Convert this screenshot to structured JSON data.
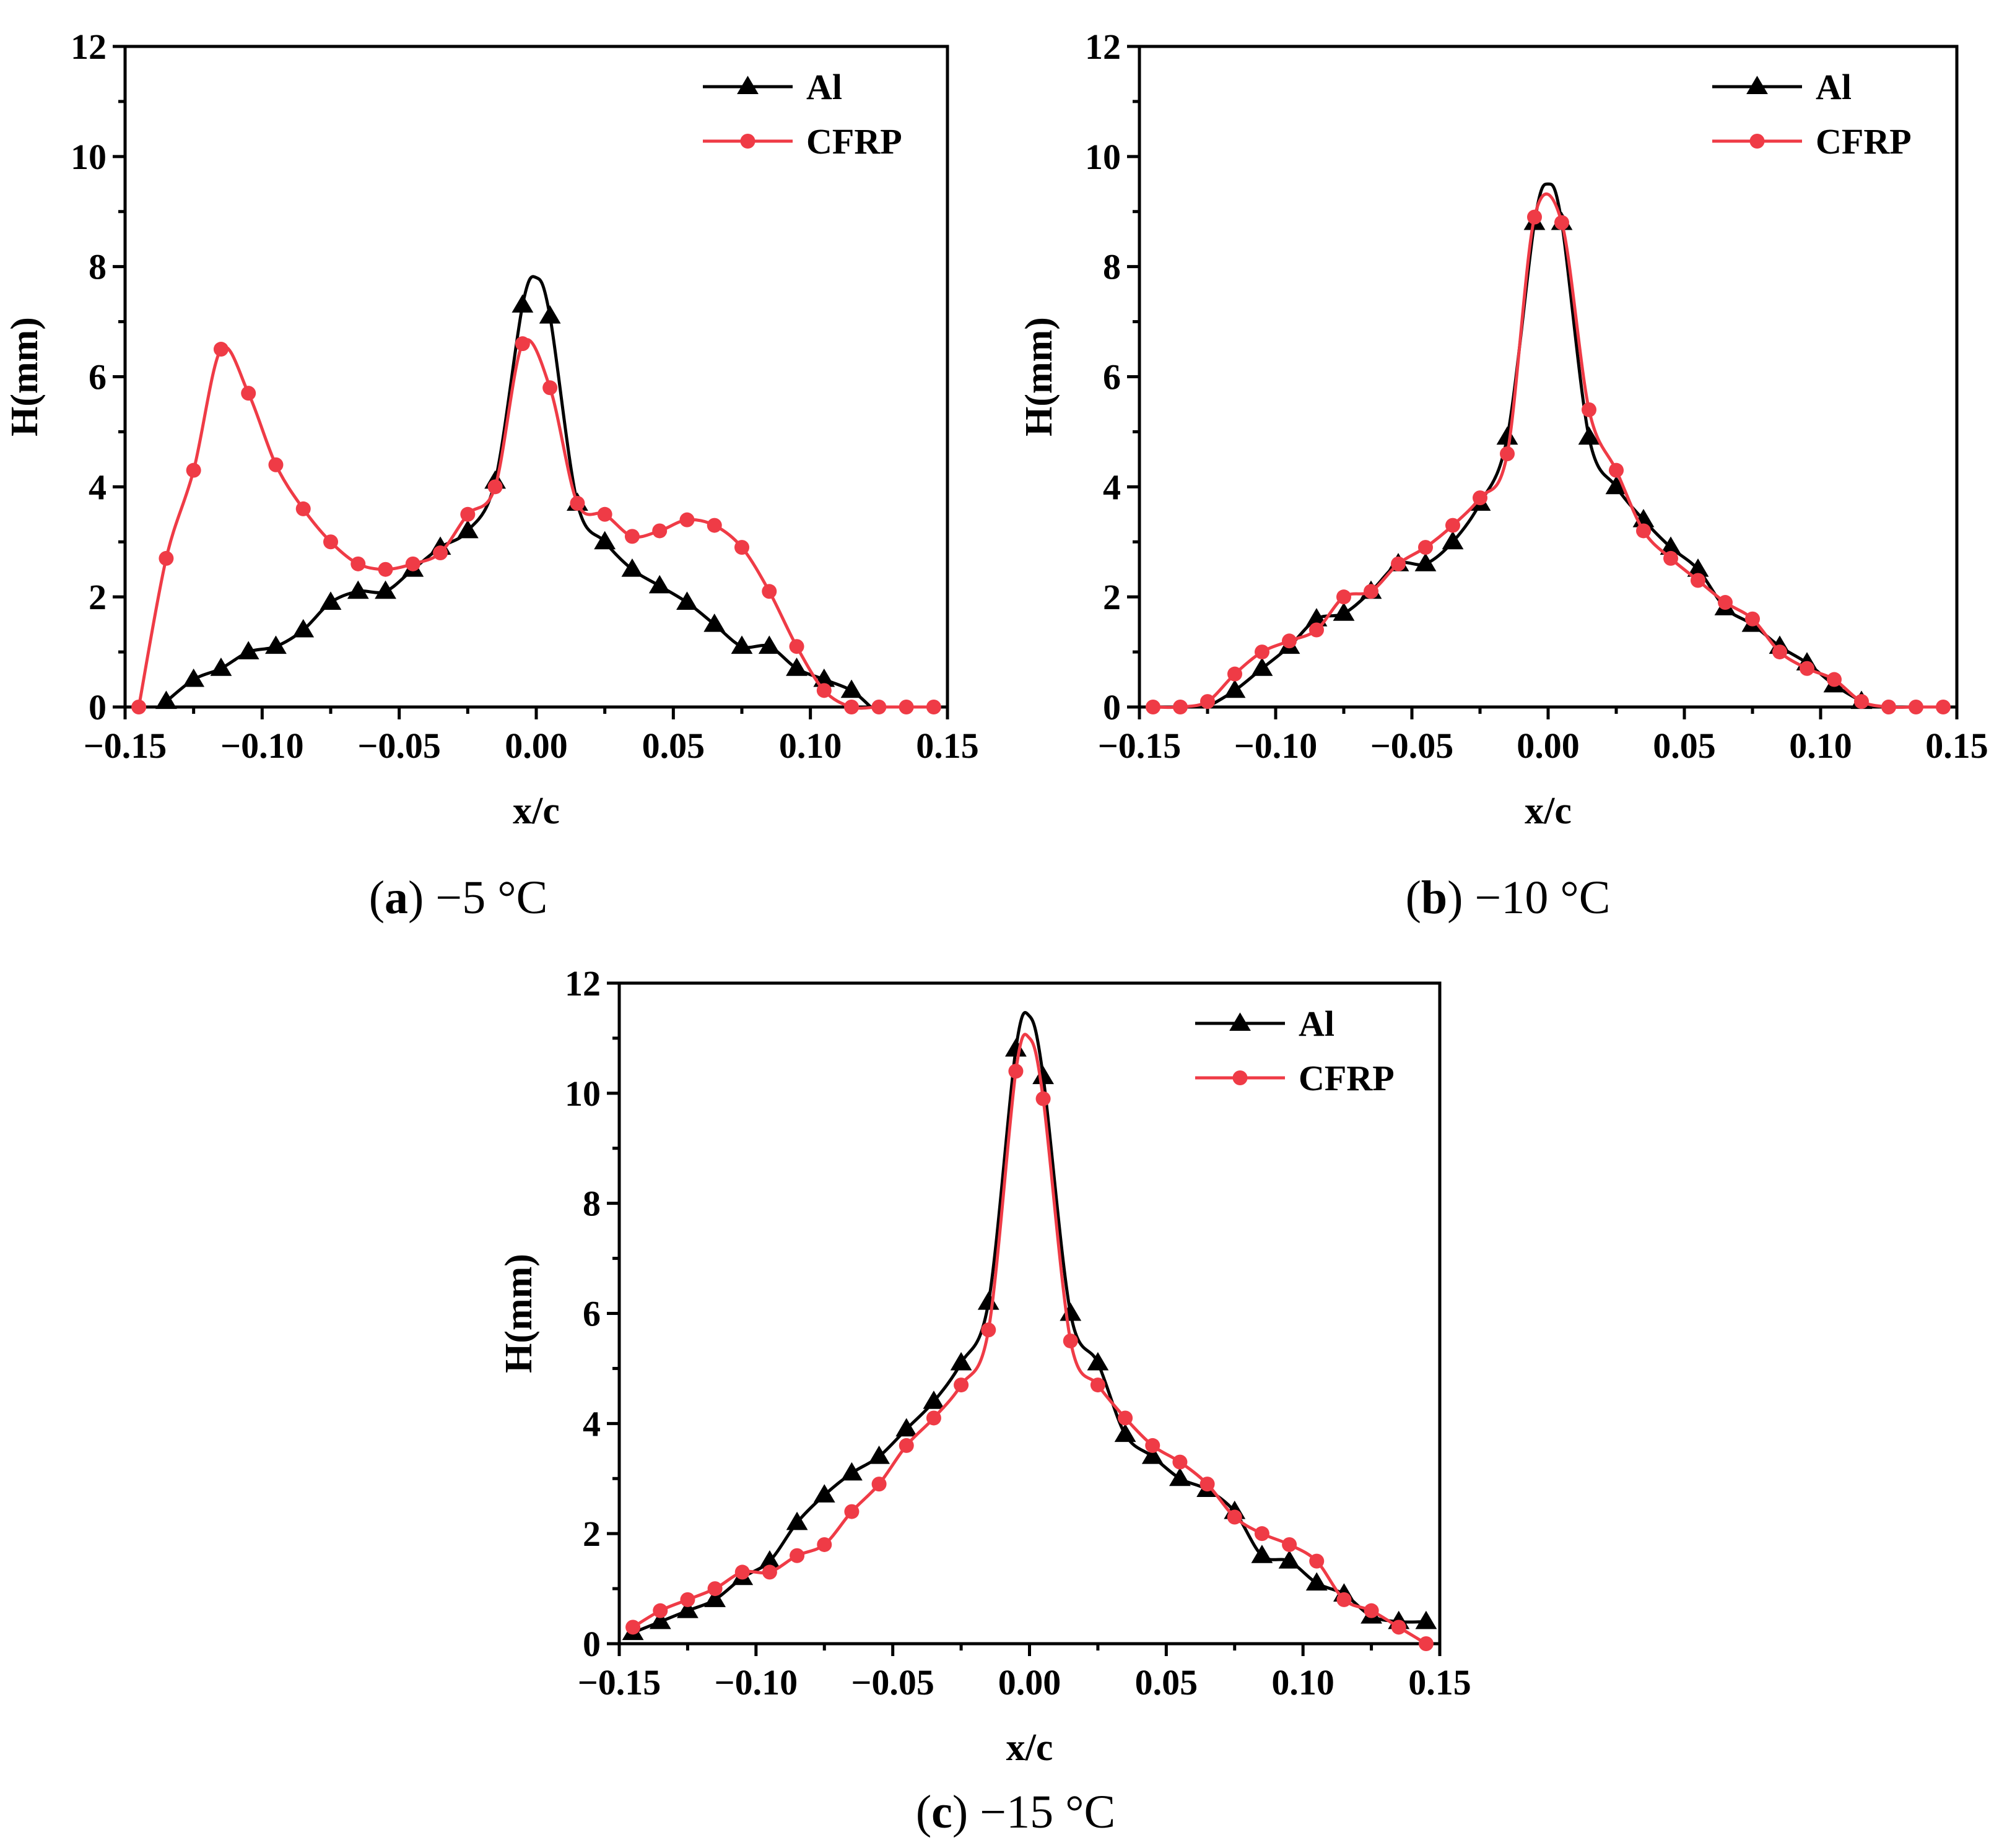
{
  "colors": {
    "al": "#000000",
    "cfrp": "#ef3b46"
  },
  "chart_data": [
    {
      "type": "line",
      "id": "a",
      "caption": {
        "letter": "a",
        "text": "−5 °C"
      },
      "xlabel": "x/c",
      "ylabel": "H(mm)",
      "xlim": [
        -0.15,
        0.15
      ],
      "ylim": [
        0,
        12
      ],
      "xticks": [
        "−0.15",
        "−0.10",
        "−0.05",
        "0.00",
        "0.05",
        "0.10",
        "0.15"
      ],
      "yticks": [
        "0",
        "2",
        "4",
        "6",
        "8",
        "10",
        "12"
      ],
      "legend": [
        "Al",
        "CFRP"
      ],
      "series": [
        {
          "name": "Al",
          "marker": "triangle",
          "x": [
            -0.135,
            -0.125,
            -0.115,
            -0.105,
            -0.095,
            -0.085,
            -0.075,
            -0.065,
            -0.055,
            -0.045,
            -0.035,
            -0.025,
            -0.015,
            -0.005,
            0.0,
            0.005,
            0.015,
            0.025,
            0.035,
            0.045,
            0.055,
            0.065,
            0.075,
            0.085,
            0.095,
            0.105,
            0.115,
            0.122
          ],
          "y": [
            0.1,
            0.5,
            0.7,
            1.0,
            1.1,
            1.4,
            1.9,
            2.1,
            2.1,
            2.5,
            2.9,
            3.2,
            4.1,
            7.3,
            7.8,
            7.1,
            3.7,
            3.0,
            2.5,
            2.2,
            1.9,
            1.5,
            1.1,
            1.1,
            0.7,
            0.5,
            0.3,
            0.0
          ],
          "markers": [
            true,
            true,
            true,
            true,
            true,
            true,
            true,
            true,
            true,
            true,
            true,
            true,
            true,
            true,
            false,
            true,
            true,
            true,
            true,
            true,
            true,
            true,
            true,
            true,
            true,
            true,
            true,
            false
          ]
        },
        {
          "name": "CFRP",
          "marker": "circle",
          "x": [
            -0.145,
            -0.135,
            -0.125,
            -0.115,
            -0.105,
            -0.095,
            -0.085,
            -0.075,
            -0.065,
            -0.055,
            -0.045,
            -0.035,
            -0.025,
            -0.015,
            -0.005,
            0.005,
            0.015,
            0.025,
            0.035,
            0.045,
            0.055,
            0.065,
            0.075,
            0.085,
            0.095,
            0.105,
            0.115,
            0.125,
            0.135,
            0.145
          ],
          "y": [
            0.0,
            2.7,
            4.3,
            6.5,
            5.7,
            4.4,
            3.6,
            3.0,
            2.6,
            2.5,
            2.6,
            2.8,
            3.5,
            4.0,
            6.6,
            5.8,
            3.7,
            3.5,
            3.1,
            3.2,
            3.4,
            3.3,
            2.9,
            2.1,
            1.1,
            0.3,
            0.0,
            0.0,
            0.0,
            0.0
          ]
        }
      ]
    },
    {
      "type": "line",
      "id": "b",
      "caption": {
        "letter": "b",
        "text": "−10 °C"
      },
      "xlabel": "x/c",
      "ylabel": "H(mm)",
      "xlim": [
        -0.15,
        0.15
      ],
      "ylim": [
        0,
        12
      ],
      "xticks": [
        "−0.15",
        "−0.10",
        "−0.05",
        "0.00",
        "0.05",
        "0.10",
        "0.15"
      ],
      "yticks": [
        "0",
        "2",
        "4",
        "6",
        "8",
        "10",
        "12"
      ],
      "legend": [
        "Al",
        "CFRP"
      ],
      "series": [
        {
          "name": "Al",
          "marker": "triangle",
          "x": [
            -0.125,
            -0.115,
            -0.105,
            -0.095,
            -0.085,
            -0.075,
            -0.065,
            -0.055,
            -0.045,
            -0.035,
            -0.025,
            -0.015,
            -0.005,
            0.0,
            0.005,
            0.015,
            0.025,
            0.035,
            0.045,
            0.055,
            0.065,
            0.075,
            0.085,
            0.095,
            0.105,
            0.115
          ],
          "y": [
            0.0,
            0.3,
            0.7,
            1.1,
            1.6,
            1.7,
            2.1,
            2.6,
            2.6,
            3.0,
            3.7,
            4.9,
            8.8,
            9.5,
            8.8,
            4.9,
            4.0,
            3.4,
            2.9,
            2.5,
            1.8,
            1.5,
            1.1,
            0.8,
            0.4,
            0.1
          ],
          "markers": [
            false,
            true,
            true,
            true,
            true,
            true,
            true,
            true,
            true,
            true,
            true,
            true,
            true,
            false,
            true,
            true,
            true,
            true,
            true,
            true,
            true,
            true,
            true,
            true,
            true,
            true
          ]
        },
        {
          "name": "CFRP",
          "marker": "circle",
          "x": [
            -0.145,
            -0.135,
            -0.125,
            -0.115,
            -0.105,
            -0.095,
            -0.085,
            -0.075,
            -0.065,
            -0.055,
            -0.045,
            -0.035,
            -0.025,
            -0.015,
            -0.005,
            0.005,
            0.015,
            0.025,
            0.035,
            0.045,
            0.055,
            0.065,
            0.075,
            0.085,
            0.095,
            0.105,
            0.115,
            0.125,
            0.135,
            0.145
          ],
          "y": [
            0.0,
            0.0,
            0.1,
            0.6,
            1.0,
            1.2,
            1.4,
            2.0,
            2.1,
            2.6,
            2.9,
            3.3,
            3.8,
            4.6,
            8.9,
            8.8,
            5.4,
            4.3,
            3.2,
            2.7,
            2.3,
            1.9,
            1.6,
            1.0,
            0.7,
            0.5,
            0.1,
            0.0,
            0.0,
            0.0
          ]
        }
      ]
    },
    {
      "type": "line",
      "id": "c",
      "caption": {
        "letter": "c",
        "text": "−15 °C"
      },
      "xlabel": "x/c",
      "ylabel": "H(mm)",
      "xlim": [
        -0.15,
        0.15
      ],
      "ylim": [
        0,
        12
      ],
      "xticks": [
        "−0.15",
        "−0.10",
        "−0.05",
        "0.00",
        "0.05",
        "0.10",
        "0.15"
      ],
      "yticks": [
        "0",
        "2",
        "4",
        "6",
        "8",
        "10",
        "12"
      ],
      "legend": [
        "Al",
        "CFRP"
      ],
      "series": [
        {
          "name": "Al",
          "marker": "triangle",
          "x": [
            -0.145,
            -0.135,
            -0.125,
            -0.115,
            -0.105,
            -0.095,
            -0.085,
            -0.075,
            -0.065,
            -0.055,
            -0.045,
            -0.035,
            -0.025,
            -0.015,
            -0.005,
            0.0,
            0.005,
            0.015,
            0.025,
            0.035,
            0.045,
            0.055,
            0.065,
            0.075,
            0.085,
            0.095,
            0.105,
            0.115,
            0.125,
            0.135,
            0.145
          ],
          "y": [
            0.2,
            0.4,
            0.6,
            0.8,
            1.2,
            1.5,
            2.2,
            2.7,
            3.1,
            3.4,
            3.9,
            4.4,
            5.1,
            6.2,
            10.8,
            11.4,
            10.3,
            6.0,
            5.1,
            3.8,
            3.4,
            3.0,
            2.8,
            2.4,
            1.6,
            1.5,
            1.1,
            0.9,
            0.5,
            0.4,
            0.4
          ],
          "markers": [
            true,
            true,
            true,
            true,
            true,
            true,
            true,
            true,
            true,
            true,
            true,
            true,
            true,
            true,
            true,
            false,
            true,
            true,
            true,
            true,
            true,
            true,
            true,
            true,
            true,
            true,
            true,
            true,
            true,
            true,
            true
          ]
        },
        {
          "name": "CFRP",
          "marker": "circle",
          "x": [
            -0.145,
            -0.135,
            -0.125,
            -0.115,
            -0.105,
            -0.095,
            -0.085,
            -0.075,
            -0.065,
            -0.055,
            -0.045,
            -0.035,
            -0.025,
            -0.015,
            -0.005,
            0.0,
            0.005,
            0.015,
            0.025,
            0.035,
            0.045,
            0.055,
            0.065,
            0.075,
            0.085,
            0.095,
            0.105,
            0.115,
            0.125,
            0.135,
            0.145
          ],
          "y": [
            0.3,
            0.6,
            0.8,
            1.0,
            1.3,
            1.3,
            1.6,
            1.8,
            2.4,
            2.9,
            3.6,
            4.1,
            4.7,
            5.7,
            10.4,
            11.0,
            9.9,
            5.5,
            4.7,
            4.1,
            3.6,
            3.3,
            2.9,
            2.3,
            2.0,
            1.8,
            1.5,
            0.8,
            0.6,
            0.3,
            0.0
          ],
          "markers": [
            true,
            true,
            true,
            true,
            true,
            true,
            true,
            true,
            true,
            true,
            true,
            true,
            true,
            true,
            true,
            false,
            true,
            true,
            true,
            true,
            true,
            true,
            true,
            true,
            true,
            true,
            true,
            true,
            true,
            true,
            true
          ]
        }
      ]
    }
  ]
}
